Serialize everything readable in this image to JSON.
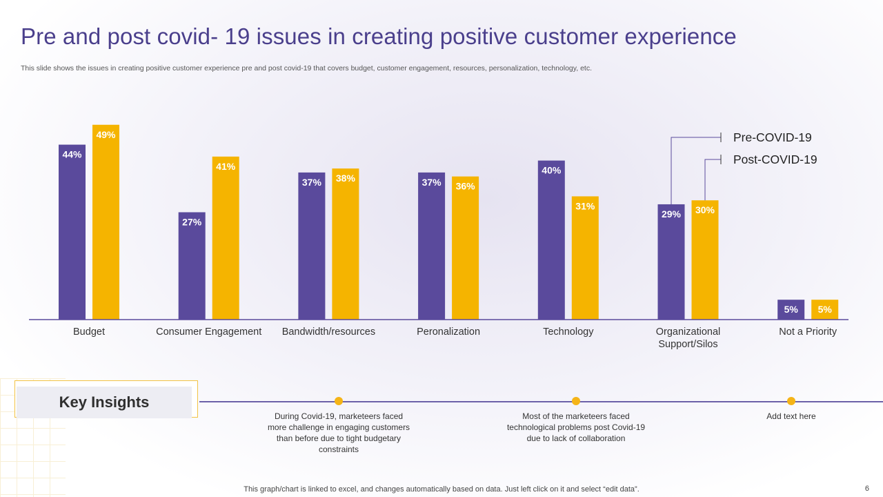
{
  "slide": {
    "title": "Pre and post covid- 19 issues in creating positive customer experience",
    "subtitle": "This slide shows the issues in creating positive customer experience pre and post covid-19 that covers budget, customer engagement, resources, personalization, technology, etc.",
    "key_insights_label": "Key Insights",
    "insights": [
      "During Covid-19,  marketeers faced more challenge in engaging customers than before due to tight budgetary constraints",
      "Most of the marketeers faced technological problems post Covid-19  due to lack of collaboration",
      "Add text here"
    ],
    "footer": "This graph/chart is linked to excel,  and changes automatically based on data. Just left click on it and select “edit data”.",
    "page_number": "6"
  },
  "colors": {
    "pre": "#5a4a9c",
    "post": "#f5b400",
    "axis": "#5a4a9c",
    "title": "#4a3f8c"
  },
  "chart_data": {
    "type": "bar",
    "title": "",
    "xlabel": "",
    "ylabel": "",
    "ylim": [
      0,
      55
    ],
    "categories": [
      "Budget",
      "Consumer Engagement",
      "Bandwidth/resources",
      "Peronalization",
      "Technology",
      "Organizational\nSupport/Silos",
      "Not a Priority"
    ],
    "series": [
      {
        "name": "Pre-COVID-19",
        "values": [
          44,
          27,
          37,
          37,
          40,
          29,
          5
        ],
        "labels": [
          "44%",
          "27%",
          "37%",
          "37%",
          "40%",
          "29%",
          "5%"
        ]
      },
      {
        "name": "Post-COVID-19",
        "values": [
          49,
          41,
          38,
          36,
          31,
          30,
          5
        ],
        "labels": [
          "49%",
          "41%",
          "38%",
          "36%",
          "31%",
          "30%",
          "5%"
        ]
      }
    ],
    "legend": "callouts on Organizational Support/Silos bars"
  }
}
